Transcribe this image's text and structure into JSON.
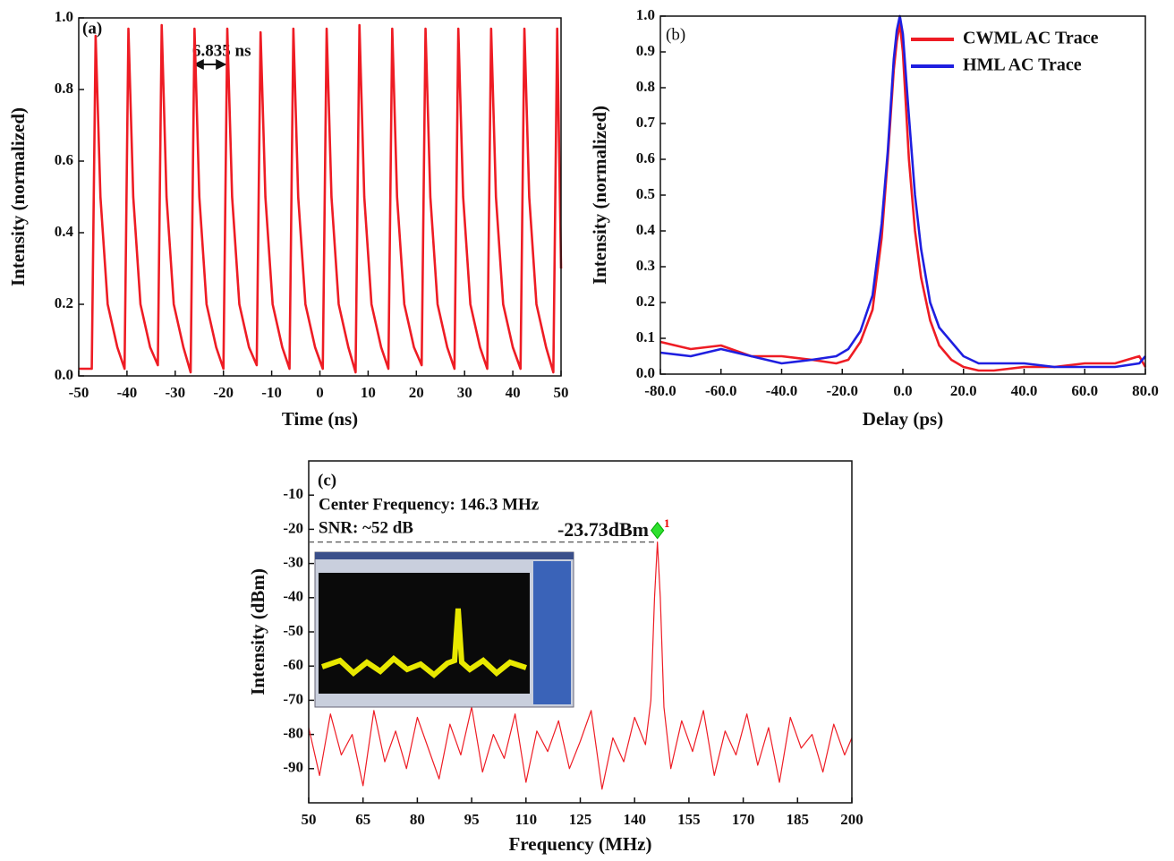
{
  "chart_data": [
    {
      "type": "line",
      "x_label": "Time (ns)",
      "y_label": "Intensity (normalized)",
      "annotations": [
        "(a)",
        "6.835 ns"
      ],
      "xlim": [
        -50,
        50
      ],
      "xticks": [
        -50,
        -40,
        -30,
        -20,
        -10,
        0,
        10,
        20,
        30,
        40,
        50
      ],
      "ylim": [
        0,
        1
      ],
      "yticks": [
        {
          "value": 0,
          "label": "0.0"
        },
        0.2,
        0.4,
        0.6,
        0.8,
        {
          "value": 1,
          "label": "1.0"
        }
      ],
      "grid": false,
      "x": [
        -50,
        -47.3,
        -46.5,
        -45.5,
        -44,
        -42,
        -40.5,
        -39.7,
        -38.7,
        -37.2,
        -35.2,
        -33.6,
        -32.8,
        -31.8,
        -30.3,
        -28.3,
        -26.8,
        -26,
        -25,
        -23.5,
        -21.5,
        -20,
        -19.2,
        -18.2,
        -16.7,
        -14.7,
        -13.1,
        -12.3,
        -11.3,
        -9.8,
        -7.8,
        -6.3,
        -5.5,
        -4.5,
        -3,
        -1,
        0.6,
        1.4,
        2.4,
        3.9,
        5.9,
        7.4,
        8.2,
        9.2,
        10.7,
        12.7,
        14.2,
        15,
        16,
        17.5,
        19.5,
        21.1,
        21.9,
        22.9,
        24.4,
        26.4,
        27.9,
        28.7,
        29.7,
        31.2,
        33.2,
        34.7,
        35.5,
        36.5,
        38,
        40,
        41.6,
        42.4,
        43.4,
        44.9,
        46.9,
        48.4,
        49.2,
        50
      ],
      "series": [
        {
          "color": "#ee1c24",
          "values": [
            0.02,
            0.02,
            0.95,
            0.5,
            0.2,
            0.08,
            0.02,
            0.97,
            0.5,
            0.2,
            0.08,
            0.03,
            0.98,
            0.5,
            0.2,
            0.08,
            0.01,
            0.97,
            0.5,
            0.2,
            0.08,
            0.02,
            0.97,
            0.5,
            0.2,
            0.08,
            0.03,
            0.96,
            0.5,
            0.2,
            0.08,
            0.02,
            0.97,
            0.5,
            0.2,
            0.08,
            0.02,
            0.97,
            0.5,
            0.2,
            0.08,
            0.01,
            0.98,
            0.5,
            0.2,
            0.08,
            0.02,
            0.97,
            0.5,
            0.2,
            0.08,
            0.03,
            0.97,
            0.5,
            0.2,
            0.08,
            0.02,
            0.97,
            0.5,
            0.2,
            0.08,
            0.02,
            0.97,
            0.5,
            0.2,
            0.08,
            0.02,
            0.97,
            0.5,
            0.2,
            0.08,
            0.01,
            0.97,
            0.3
          ]
        }
      ]
    },
    {
      "type": "line",
      "x_label": "Delay (ps)",
      "y_label": "Intensity (normalized)",
      "annotations": [
        "(b)"
      ],
      "legend": "upper right",
      "xlim": [
        -80,
        80
      ],
      "xticks": [
        {
          "value": -80,
          "label": "-80.0"
        },
        {
          "value": -60,
          "label": "-60.0"
        },
        {
          "value": -40,
          "label": "-40.0"
        },
        {
          "value": -20,
          "label": "-20.0"
        },
        {
          "value": 0,
          "label": "0.0"
        },
        {
          "value": 20,
          "label": "20.0"
        },
        {
          "value": 40,
          "label": "40.0"
        },
        {
          "value": 60,
          "label": "60.0"
        },
        {
          "value": 80,
          "label": "80.0"
        }
      ],
      "ylim": [
        0,
        1
      ],
      "yticks": [
        {
          "value": 0,
          "label": "0.0"
        },
        0.1,
        0.2,
        0.3,
        0.4,
        0.5,
        0.6,
        0.7,
        0.8,
        0.9,
        {
          "value": 1,
          "label": "1.0"
        }
      ],
      "grid": false,
      "x": [
        -80,
        -70,
        -60,
        -50,
        -40,
        -30,
        -22,
        -18,
        -14,
        -10,
        -7,
        -5,
        -3,
        -2,
        -1,
        0,
        2,
        4,
        6,
        9,
        12,
        16,
        20,
        25,
        30,
        40,
        50,
        60,
        70,
        78,
        80
      ],
      "series": [
        {
          "name": "CWML AC Trace",
          "color": "#ee1c24",
          "values": [
            0.09,
            0.07,
            0.08,
            0.05,
            0.05,
            0.04,
            0.03,
            0.04,
            0.09,
            0.18,
            0.38,
            0.6,
            0.85,
            0.93,
            0.98,
            0.9,
            0.6,
            0.4,
            0.27,
            0.15,
            0.08,
            0.04,
            0.02,
            0.01,
            0.01,
            0.02,
            0.02,
            0.03,
            0.03,
            0.05,
            0.02
          ]
        },
        {
          "name": "HML AC Trace",
          "color": "#1f1fe0",
          "values": [
            0.06,
            0.05,
            0.07,
            0.05,
            0.03,
            0.04,
            0.05,
            0.07,
            0.12,
            0.22,
            0.42,
            0.62,
            0.88,
            0.96,
            1.0,
            0.95,
            0.72,
            0.5,
            0.35,
            0.2,
            0.13,
            0.09,
            0.05,
            0.03,
            0.03,
            0.03,
            0.02,
            0.02,
            0.02,
            0.03,
            0.05
          ]
        }
      ]
    },
    {
      "type": "line",
      "x_label": "Frequency (MHz)",
      "y_label": "Intensity (dBm)",
      "annotations": [
        "(c)",
        "Center Frequency: 146.3 MHz",
        "SNR: ~52 dB",
        "-23.73dBm",
        "1"
      ],
      "xlim": [
        50,
        200
      ],
      "xticks": [
        50,
        65,
        80,
        95,
        110,
        125,
        140,
        155,
        170,
        185,
        200
      ],
      "ylim": [
        -100,
        0
      ],
      "yticks": [
        -10,
        -20,
        -30,
        -40,
        -50,
        -60,
        -70,
        -80,
        -90
      ],
      "grid": false,
      "x": [
        50,
        53,
        56,
        59,
        62,
        65,
        68,
        71,
        74,
        77,
        80,
        83,
        86,
        89,
        92,
        95,
        98,
        101,
        104,
        107,
        110,
        113,
        116,
        119,
        122,
        125,
        128,
        131,
        134,
        137,
        140,
        143,
        144.5,
        145.5,
        146.3,
        147.1,
        148.1,
        150,
        153,
        156,
        159,
        162,
        165,
        168,
        171,
        174,
        177,
        180,
        183,
        186,
        189,
        192,
        195,
        198,
        200
      ],
      "series": [
        {
          "color": "#ee1c24",
          "values": [
            -78,
            -92,
            -74,
            -86,
            -80,
            -95,
            -73,
            -88,
            -79,
            -90,
            -75,
            -84,
            -93,
            -77,
            -86,
            -72,
            -91,
            -80,
            -87,
            -74,
            -94,
            -79,
            -85,
            -76,
            -90,
            -82,
            -73,
            -96,
            -81,
            -88,
            -75,
            -83,
            -70,
            -40,
            -23.73,
            -40,
            -72,
            -90,
            -76,
            -85,
            -73,
            -92,
            -79,
            -86,
            -74,
            -89,
            -78,
            -94,
            -75,
            -84,
            -80,
            -91,
            -77,
            -86,
            -81
          ]
        }
      ]
    }
  ]
}
